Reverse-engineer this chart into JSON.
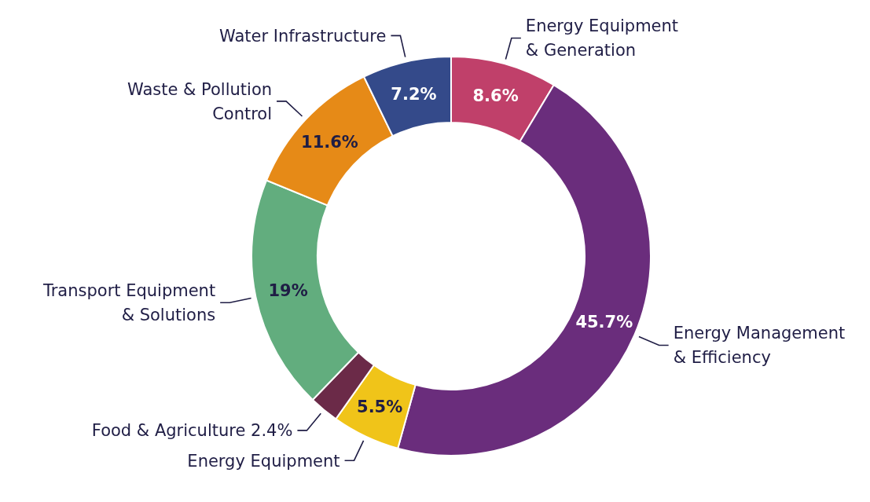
{
  "chart_data": {
    "type": "donut",
    "categories": [
      "Energy Equipment\n& Generation",
      "Energy Management\n& Efficiency",
      "Energy Equipment",
      "Food & Agriculture",
      "Transport Equipment\n& Solutions",
      "Waste & Pollution\nControl",
      "Water Infrastructure"
    ],
    "values": [
      8.6,
      45.7,
      5.5,
      2.4,
      19,
      11.6,
      7.2
    ],
    "colors": [
      "#c0406a",
      "#6a2d7c",
      "#f0c419",
      "#6b2a48",
      "#62ad7e",
      "#e68a17",
      "#344a8a"
    ],
    "value_labels": [
      "8.6%",
      "45.7%",
      "5.5%",
      "2.4%",
      "19%",
      "11.6%",
      "7.2%"
    ]
  }
}
